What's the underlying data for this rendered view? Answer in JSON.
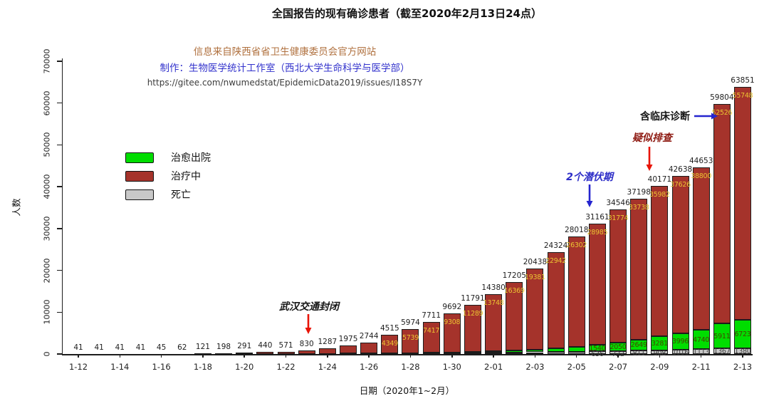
{
  "title": "全国报告的现有确诊患者（截至2020年2月13日24点）",
  "header": {
    "source_line": "信息来自陕西省省卫生健康委员会官方网站",
    "credit_line": "制作：生物医学统计工作室（西北大学生命科学与医学部）",
    "url_line": "https://gitee.com/nwumedstat/EpidemicData2019/issues/I18S7Y"
  },
  "chart_data": {
    "type": "bar",
    "stacked": true,
    "title": "全国报告的现有确诊患者（截至2020年2月13日24点）",
    "xlabel": "日期（2020年1~2月）",
    "ylabel": "人数",
    "ylim": [
      0,
      70000
    ],
    "yticks": [
      0,
      10000,
      20000,
      30000,
      40000,
      50000,
      60000,
      70000
    ],
    "grid": false,
    "legend_position": "middle-left",
    "xtick_every": 2,
    "stack_order_bottom_to_top": [
      "死亡",
      "治愈出院",
      "治疗中"
    ],
    "categories": [
      "1-12",
      "1-13",
      "1-14",
      "1-15",
      "1-16",
      "1-17",
      "1-18",
      "1-19",
      "1-20",
      "1-21",
      "1-22",
      "1-23",
      "1-24",
      "1-25",
      "1-26",
      "1-27",
      "1-28",
      "1-29",
      "1-30",
      "1-31",
      "2-01",
      "2-02",
      "2-03",
      "2-04",
      "2-05",
      "2-06",
      "2-07",
      "2-08",
      "2-09",
      "2-10",
      "2-11",
      "2-12",
      "2-13"
    ],
    "totals": [
      41,
      41,
      41,
      41,
      45,
      62,
      121,
      198,
      291,
      440,
      571,
      830,
      1287,
      1975,
      2744,
      4515,
      5974,
      7711,
      9692,
      11791,
      14380,
      17205,
      20438,
      24324,
      28018,
      31161,
      34546,
      37198,
      40171,
      42638,
      44653,
      59804,
      63851
    ],
    "series": [
      {
        "name": "治愈出院",
        "role": "cured",
        "color": "#00dd00",
        "label_color": "#454500",
        "values": [
          6,
          7,
          12,
          12,
          15,
          19,
          24,
          25,
          25,
          25,
          28,
          34,
          38,
          49,
          51,
          60,
          103,
          124,
          171,
          243,
          328,
          475,
          632,
          892,
          1153,
          1540,
          2050,
          2649,
          3281,
          3996,
          4740,
          5911,
          6723
        ]
      },
      {
        "name": "治疗中",
        "role": "treating",
        "color": "#a5332b",
        "label_color": "#edc533",
        "values": [
          34,
          33,
          28,
          27,
          28,
          41,
          94,
          170,
          260,
          406,
          526,
          771,
          1208,
          1870,
          2613,
          4349,
          5739,
          7417,
          9308,
          11289,
          13748,
          16369,
          19381,
          22942,
          26302,
          28985,
          31774,
          33738,
          35982,
          37626,
          38800,
          52526,
          55748
        ]
      },
      {
        "name": "死亡",
        "role": "dead",
        "color": "#c8c8c8",
        "label_color": "#3d3d3d",
        "values": [
          1,
          1,
          1,
          2,
          2,
          2,
          3,
          3,
          6,
          9,
          17,
          25,
          41,
          56,
          80,
          106,
          132,
          170,
          213,
          259,
          304,
          361,
          425,
          490,
          563,
          636,
          722,
          811,
          908,
          1016,
          1113,
          1367,
          1380
        ]
      }
    ],
    "annotations": [
      {
        "id": "wuhan_lockdown",
        "text": "武汉交通封闭",
        "target_date": "1-23",
        "color": "#151515",
        "arrow_color": "#e81407",
        "italic": true
      },
      {
        "id": "two_incubation",
        "text": "2个潜伏期",
        "target_date": "2-06",
        "color": "#2e2ec8",
        "arrow_color": "#2525cf",
        "italic": true
      },
      {
        "id": "suspected_screening",
        "text": "疑似排查",
        "target_date": "2-09",
        "color": "#8e1a12",
        "arrow_color": "#e81407",
        "italic": true
      },
      {
        "id": "clinical_diagnosis",
        "text": "含临床诊断",
        "target_date": "2-12",
        "color": "#151515",
        "arrow_color": "#2525cf",
        "italic": false
      }
    ]
  },
  "colors": {
    "axis": "#1c1c1c",
    "total_label": "#1d1d1d",
    "header_source": "#b0713f",
    "header_credit": "#3232cc",
    "header_url": "#3c3c3c"
  }
}
